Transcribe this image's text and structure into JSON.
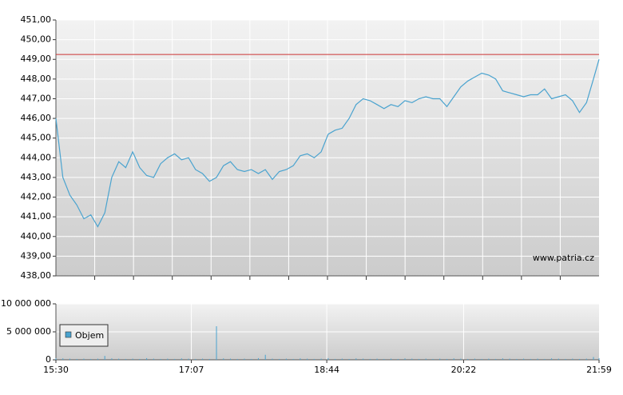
{
  "chart_data": [
    {
      "type": "line",
      "watermark": "www.patria.cz",
      "color": "#4aa3cf",
      "hline": {
        "value": 449.25,
        "color": "#cc3333"
      },
      "xlim": [
        "15:30",
        "21:59"
      ],
      "x": [
        "15:30",
        "15:35",
        "15:40",
        "15:45",
        "15:50",
        "15:55",
        "16:00",
        "16:05",
        "16:10",
        "16:15",
        "16:20",
        "16:25",
        "16:30",
        "16:35",
        "16:40",
        "16:45",
        "16:50",
        "16:55",
        "17:00",
        "17:05",
        "17:10",
        "17:15",
        "17:20",
        "17:25",
        "17:30",
        "17:35",
        "17:40",
        "17:45",
        "17:50",
        "17:55",
        "18:00",
        "18:05",
        "18:10",
        "18:15",
        "18:20",
        "18:25",
        "18:30",
        "18:35",
        "18:40",
        "18:45",
        "18:50",
        "18:55",
        "19:00",
        "19:05",
        "19:10",
        "19:15",
        "19:20",
        "19:25",
        "19:30",
        "19:35",
        "19:40",
        "19:45",
        "19:50",
        "19:55",
        "20:00",
        "20:05",
        "20:10",
        "20:15",
        "20:20",
        "20:25",
        "20:30",
        "20:35",
        "20:40",
        "20:45",
        "20:50",
        "20:55",
        "21:00",
        "21:05",
        "21:10",
        "21:15",
        "21:20",
        "21:25",
        "21:30",
        "21:35",
        "21:40",
        "21:45",
        "21:50",
        "21:55",
        "21:59"
      ],
      "values": [
        446.0,
        443.0,
        442.1,
        441.6,
        440.9,
        441.1,
        440.5,
        441.2,
        443.0,
        443.8,
        443.5,
        444.3,
        443.5,
        443.1,
        443.0,
        443.7,
        444.0,
        444.2,
        443.9,
        444.0,
        443.4,
        443.2,
        442.8,
        443.0,
        443.6,
        443.8,
        443.4,
        443.3,
        443.4,
        443.2,
        443.4,
        442.9,
        443.3,
        443.4,
        443.6,
        444.1,
        444.2,
        444.0,
        444.3,
        445.2,
        445.4,
        445.5,
        446.0,
        446.7,
        447.0,
        446.9,
        446.7,
        446.5,
        446.7,
        446.6,
        446.9,
        446.8,
        447.0,
        447.1,
        447.0,
        447.0,
        446.6,
        447.1,
        447.6,
        447.9,
        448.1,
        448.3,
        448.2,
        448.0,
        447.4,
        447.3,
        447.2,
        447.1,
        447.2,
        447.2,
        447.5,
        447.0,
        447.1,
        447.2,
        446.9,
        446.3,
        446.8,
        448.0,
        449.0
      ],
      "ylim": [
        438,
        451
      ],
      "yticks": [
        {
          "value": 438,
          "label": "438,00"
        },
        {
          "value": 439,
          "label": "439,00"
        },
        {
          "value": 440,
          "label": "440,00"
        },
        {
          "value": 441,
          "label": "441,00"
        },
        {
          "value": 442,
          "label": "442,00"
        },
        {
          "value": 443,
          "label": "443,00"
        },
        {
          "value": 444,
          "label": "444,00"
        },
        {
          "value": 445,
          "label": "445,00"
        },
        {
          "value": 446,
          "label": "446,00"
        },
        {
          "value": 447,
          "label": "447,00"
        },
        {
          "value": 448,
          "label": "448,00"
        },
        {
          "value": 449,
          "label": "449,00"
        },
        {
          "value": 450,
          "label": "450,00"
        },
        {
          "value": 451,
          "label": "451,00"
        }
      ],
      "grid": true
    },
    {
      "type": "bar",
      "xlim": [
        "15:30",
        "21:59"
      ],
      "xticks": [
        "15:30",
        "17:07",
        "18:44",
        "20:22",
        "21:59"
      ],
      "x": [
        "15:30",
        "15:35",
        "15:40",
        "15:45",
        "15:50",
        "15:55",
        "16:00",
        "16:05",
        "16:10",
        "16:15",
        "16:20",
        "16:25",
        "16:30",
        "16:35",
        "16:40",
        "16:45",
        "16:50",
        "16:55",
        "17:00",
        "17:05",
        "17:10",
        "17:15",
        "17:20",
        "17:25",
        "17:30",
        "17:35",
        "17:40",
        "17:45",
        "17:50",
        "17:55",
        "18:00",
        "18:05",
        "18:10",
        "18:15",
        "18:20",
        "18:25",
        "18:30",
        "18:35",
        "18:40",
        "18:45",
        "18:50",
        "18:55",
        "19:00",
        "19:05",
        "19:10",
        "19:15",
        "19:20",
        "19:25",
        "19:30",
        "19:35",
        "19:40",
        "19:45",
        "19:50",
        "19:55",
        "20:00",
        "20:05",
        "20:10",
        "20:15",
        "20:20",
        "20:25",
        "20:30",
        "20:35",
        "20:40",
        "20:45",
        "20:50",
        "20:55",
        "21:00",
        "21:05",
        "21:10",
        "21:15",
        "21:20",
        "21:25",
        "21:30",
        "21:35",
        "21:40",
        "21:45",
        "21:50",
        "21:55",
        "21:59"
      ],
      "series": [
        {
          "name": "Objem",
          "color": "#4aa3cf",
          "values": [
            300000,
            250000,
            200000,
            150000,
            200000,
            150000,
            200000,
            700000,
            250000,
            200000,
            150000,
            200000,
            150000,
            300000,
            200000,
            150000,
            200000,
            150000,
            250000,
            200000,
            150000,
            200000,
            150000,
            6000000,
            250000,
            200000,
            150000,
            200000,
            150000,
            300000,
            900000,
            200000,
            150000,
            200000,
            150000,
            250000,
            200000,
            150000,
            200000,
            300000,
            150000,
            200000,
            150000,
            250000,
            200000,
            150000,
            200000,
            150000,
            200000,
            150000,
            250000,
            200000,
            150000,
            200000,
            150000,
            200000,
            150000,
            250000,
            200000,
            150000,
            200000,
            150000,
            200000,
            150000,
            250000,
            200000,
            150000,
            200000,
            150000,
            200000,
            150000,
            250000,
            200000,
            150000,
            200000,
            150000,
            200000,
            500000,
            300000
          ]
        }
      ],
      "ylim": [
        0,
        10000000
      ],
      "yticks": [
        {
          "value": 0,
          "label": "0"
        },
        {
          "value": 5000000,
          "label": "5 000 000"
        },
        {
          "value": 10000000,
          "label": "10 000 000"
        }
      ],
      "grid": true
    }
  ]
}
